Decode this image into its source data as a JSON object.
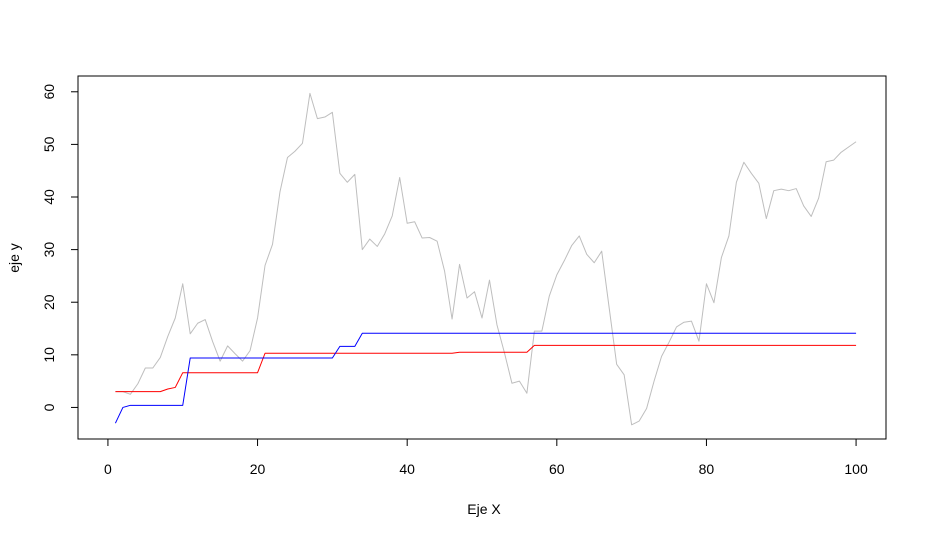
{
  "chart_data": {
    "type": "line",
    "title": "",
    "xlabel": "Eje X",
    "ylabel": "eje y",
    "xlim": [
      -4,
      104
    ],
    "ylim": [
      -6,
      63
    ],
    "x_ticks": [
      0,
      20,
      40,
      60,
      80,
      100
    ],
    "y_ticks": [
      0,
      10,
      20,
      30,
      40,
      50,
      60
    ],
    "x_tick_labels": [
      "0",
      "20",
      "40",
      "60",
      "80",
      "100"
    ],
    "y_tick_labels": [
      "0",
      "10",
      "20",
      "30",
      "40",
      "50",
      "60"
    ],
    "grid": false,
    "legend": "none",
    "series": [
      {
        "color": "#bebebe",
        "x": [
          1,
          2,
          3,
          4,
          5,
          6,
          7,
          8,
          9,
          10,
          11,
          12,
          13,
          14,
          15,
          16,
          17,
          18,
          19,
          20,
          21,
          22,
          23,
          24,
          25,
          26,
          27,
          28,
          29,
          30,
          31,
          32,
          33,
          34,
          35,
          36,
          37,
          38,
          39,
          40,
          41,
          42,
          43,
          44,
          45,
          46,
          47,
          48,
          49,
          50,
          51,
          52,
          53,
          54,
          55,
          56,
          57,
          58,
          59,
          60,
          61,
          62,
          63,
          64,
          65,
          66,
          67,
          68,
          69,
          70,
          71,
          72,
          73,
          74,
          75,
          76,
          77,
          78,
          79,
          80,
          81,
          82,
          83,
          84,
          85,
          86,
          87,
          88,
          89,
          90,
          91,
          92,
          93,
          94,
          95,
          96,
          97,
          98,
          99,
          100
        ],
        "y": [
          3,
          3,
          2.5,
          4.5,
          7.5,
          7.5,
          9.5,
          13.5,
          17,
          23.5,
          14,
          16,
          16.7,
          12.5,
          8.8,
          11.7,
          10.2,
          8.8,
          10.8,
          17,
          27,
          31,
          41,
          47.5,
          48.7,
          50.2,
          59.7,
          54.9,
          55.2,
          56.1,
          44.5,
          42.8,
          44.3,
          30,
          32,
          30.6,
          33,
          36.4,
          43.7,
          35,
          35.3,
          32.2,
          32.3,
          31.6,
          25.9,
          16.8,
          27.2,
          20.8,
          22,
          17,
          24.2,
          15.7,
          10.4,
          4.6,
          5,
          2.7,
          14.5,
          14.5,
          21.2,
          25.2,
          27.9,
          30.8,
          32.6,
          29.1,
          27.5,
          29.7,
          18.9,
          8.2,
          6.2,
          -3.3,
          -2.6,
          -0.2,
          5,
          9.7,
          12.4,
          15.3,
          16.2,
          16.4,
          12.6,
          23.5,
          19.9,
          28.5,
          32.6,
          42.8,
          46.6,
          44.5,
          42.6,
          35.9,
          41.2,
          41.5,
          41.2,
          41.6,
          38.3,
          36.3,
          39.8,
          46.7,
          47,
          48.5,
          49.5,
          50.5
        ]
      },
      {
        "color": "#ff0000",
        "x": [
          1,
          2,
          3,
          4,
          5,
          6,
          7,
          8,
          9,
          10,
          11,
          12,
          13,
          14,
          15,
          16,
          17,
          18,
          19,
          20,
          21,
          22,
          23,
          24,
          25,
          26,
          27,
          28,
          29,
          30,
          31,
          32,
          33,
          34,
          35,
          36,
          37,
          38,
          39,
          40,
          41,
          42,
          43,
          44,
          45,
          46,
          47,
          48,
          49,
          50,
          51,
          52,
          53,
          54,
          55,
          56,
          57,
          58,
          59,
          60,
          61,
          62,
          63,
          64,
          65,
          66,
          67,
          68,
          69,
          70,
          71,
          72,
          73,
          74,
          75,
          76,
          77,
          78,
          79,
          80,
          81,
          82,
          83,
          84,
          85,
          86,
          87,
          88,
          89,
          90,
          91,
          92,
          93,
          94,
          95,
          96,
          97,
          98,
          99,
          100
        ],
        "y": [
          3,
          3,
          3,
          3,
          3,
          3,
          3,
          3.5,
          3.8,
          6.6,
          6.6,
          6.6,
          6.6,
          6.6,
          6.6,
          6.6,
          6.6,
          6.6,
          6.6,
          6.6,
          10.3,
          10.3,
          10.3,
          10.3,
          10.3,
          10.3,
          10.3,
          10.3,
          10.3,
          10.3,
          10.3,
          10.3,
          10.3,
          10.3,
          10.3,
          10.3,
          10.3,
          10.3,
          10.3,
          10.3,
          10.3,
          10.3,
          10.3,
          10.3,
          10.3,
          10.3,
          10.5,
          10.5,
          10.5,
          10.5,
          10.5,
          10.5,
          10.5,
          10.5,
          10.5,
          10.5,
          11.8,
          11.8,
          11.8,
          11.8,
          11.8,
          11.8,
          11.8,
          11.8,
          11.8,
          11.8,
          11.8,
          11.8,
          11.8,
          11.8,
          11.8,
          11.8,
          11.8,
          11.8,
          11.8,
          11.8,
          11.8,
          11.8,
          11.8,
          11.8,
          11.8,
          11.8,
          11.8,
          11.8,
          11.8,
          11.8,
          11.8,
          11.8,
          11.8,
          11.8,
          11.8,
          11.8,
          11.8,
          11.8,
          11.8,
          11.8,
          11.8,
          11.8,
          11.8,
          11.8
        ]
      },
      {
        "color": "#0000ff",
        "x": [
          1,
          2,
          3,
          4,
          5,
          6,
          7,
          8,
          9,
          10,
          11,
          12,
          13,
          14,
          15,
          16,
          17,
          18,
          19,
          20,
          21,
          22,
          23,
          24,
          25,
          26,
          27,
          28,
          29,
          30,
          31,
          32,
          33,
          34,
          35,
          36,
          37,
          38,
          39,
          40,
          41,
          42,
          43,
          44,
          45,
          46,
          47,
          48,
          49,
          50,
          51,
          52,
          53,
          54,
          55,
          56,
          57,
          58,
          59,
          60,
          61,
          62,
          63,
          64,
          65,
          66,
          67,
          68,
          69,
          70,
          71,
          72,
          73,
          74,
          75,
          76,
          77,
          78,
          79,
          80,
          81,
          82,
          83,
          84,
          85,
          86,
          87,
          88,
          89,
          90,
          91,
          92,
          93,
          94,
          95,
          96,
          97,
          98,
          99,
          100
        ],
        "y": [
          -3,
          0,
          0.4,
          0.4,
          0.4,
          0.4,
          0.4,
          0.4,
          0.4,
          0.4,
          9.4,
          9.4,
          9.4,
          9.4,
          9.4,
          9.4,
          9.4,
          9.4,
          9.4,
          9.4,
          9.4,
          9.4,
          9.4,
          9.4,
          9.4,
          9.4,
          9.4,
          9.4,
          9.4,
          9.4,
          11.6,
          11.6,
          11.6,
          14.1,
          14.1,
          14.1,
          14.1,
          14.1,
          14.1,
          14.1,
          14.1,
          14.1,
          14.1,
          14.1,
          14.1,
          14.1,
          14.1,
          14.1,
          14.1,
          14.1,
          14.1,
          14.1,
          14.1,
          14.1,
          14.1,
          14.1,
          14.1,
          14.1,
          14.1,
          14.1,
          14.1,
          14.1,
          14.1,
          14.1,
          14.1,
          14.1,
          14.1,
          14.1,
          14.1,
          14.1,
          14.1,
          14.1,
          14.1,
          14.1,
          14.1,
          14.1,
          14.1,
          14.1,
          14.1,
          14.1,
          14.1,
          14.1,
          14.1,
          14.1,
          14.1,
          14.1,
          14.1,
          14.1,
          14.1,
          14.1,
          14.1,
          14.1,
          14.1,
          14.1,
          14.1,
          14.1,
          14.1,
          14.1,
          14.1,
          14.1
        ]
      }
    ]
  }
}
